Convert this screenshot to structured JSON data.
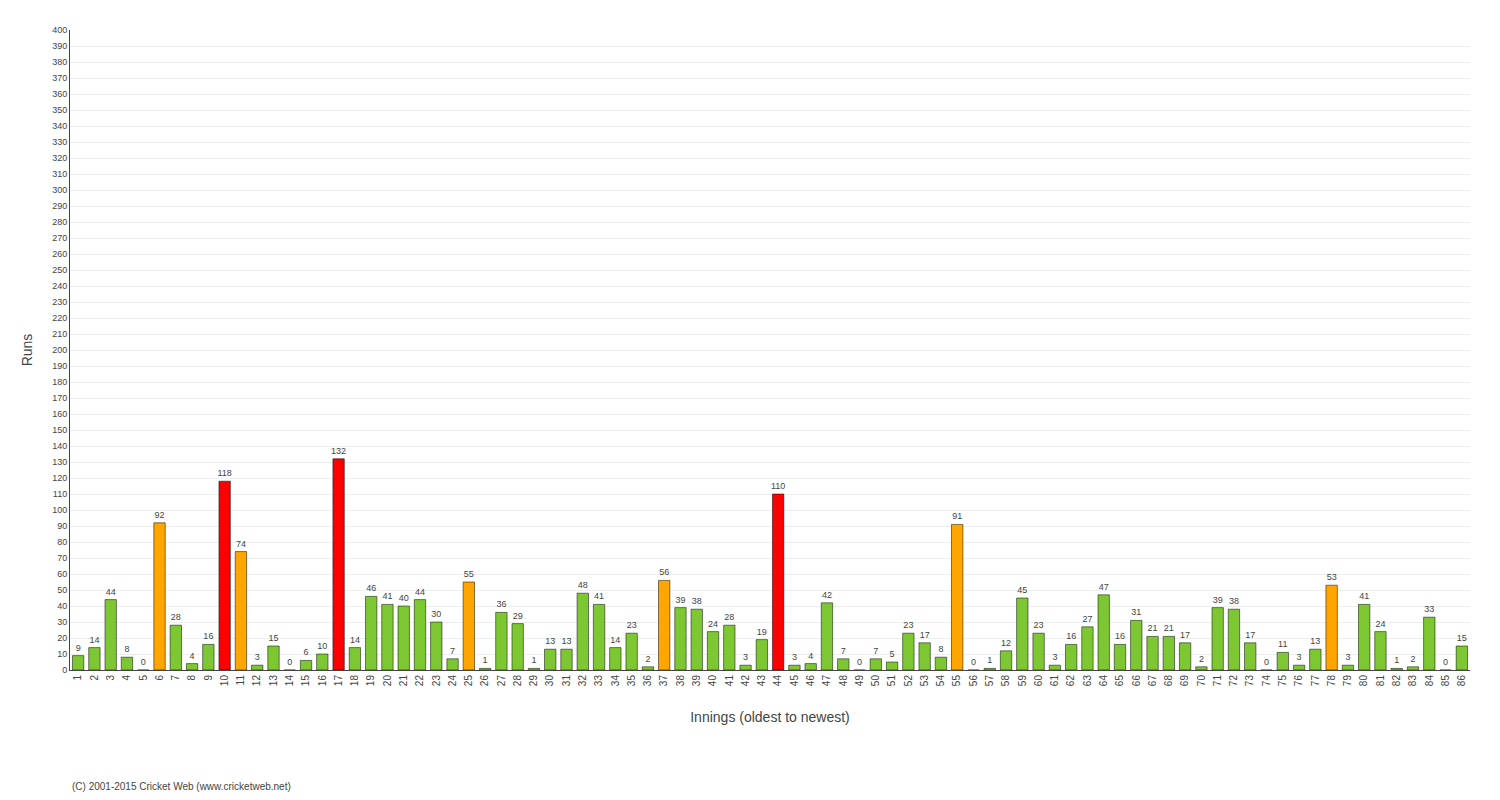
{
  "chart_data": {
    "type": "bar",
    "xlabel": "Innings (oldest to newest)",
    "ylabel": "Runs",
    "categories": [
      "1",
      "2",
      "3",
      "4",
      "5",
      "6",
      "7",
      "8",
      "9",
      "10",
      "11",
      "12",
      "13",
      "14",
      "15",
      "16",
      "17",
      "18",
      "19",
      "20",
      "21",
      "22",
      "23",
      "24",
      "25",
      "26",
      "27",
      "28",
      "29",
      "30",
      "31",
      "32",
      "33",
      "34",
      "35",
      "36",
      "37",
      "38",
      "39",
      "40",
      "41",
      "42",
      "43",
      "44",
      "45",
      "46",
      "47",
      "48",
      "49",
      "50",
      "51",
      "52",
      "53",
      "54",
      "55",
      "56",
      "57",
      "58",
      "59",
      "60",
      "61",
      "62",
      "63",
      "64",
      "65",
      "66",
      "67",
      "68",
      "69",
      "70",
      "71",
      "72",
      "73",
      "74",
      "75",
      "76",
      "77",
      "78",
      "79",
      "80",
      "81",
      "82",
      "83",
      "84",
      "85",
      "86"
    ],
    "values": [
      9,
      14,
      44,
      8,
      0,
      92,
      28,
      4,
      16,
      118,
      74,
      3,
      15,
      0,
      6,
      10,
      132,
      14,
      46,
      41,
      40,
      44,
      30,
      7,
      55,
      1,
      36,
      29,
      1,
      13,
      13,
      48,
      41,
      14,
      23,
      2,
      56,
      39,
      38,
      24,
      28,
      3,
      19,
      110,
      3,
      4,
      42,
      7,
      0,
      7,
      5,
      23,
      17,
      8,
      91,
      0,
      1,
      12,
      45,
      23,
      3,
      16,
      27,
      47,
      16,
      31,
      21,
      21,
      17,
      2,
      39,
      38,
      17,
      0,
      11,
      3,
      13,
      53,
      3,
      41,
      24,
      1,
      2,
      33,
      0,
      15
    ],
    "colors": [
      "#7dc832",
      "#7dc832",
      "#7dc832",
      "#7dc832",
      "#7dc832",
      "#ffa500",
      "#7dc832",
      "#7dc832",
      "#7dc832",
      "#ff0000",
      "#ffa500",
      "#7dc832",
      "#7dc832",
      "#7dc832",
      "#7dc832",
      "#7dc832",
      "#ff0000",
      "#7dc832",
      "#7dc832",
      "#7dc832",
      "#7dc832",
      "#7dc832",
      "#7dc832",
      "#7dc832",
      "#ffa500",
      "#7dc832",
      "#7dc832",
      "#7dc832",
      "#7dc832",
      "#7dc832",
      "#7dc832",
      "#7dc832",
      "#7dc832",
      "#7dc832",
      "#7dc832",
      "#7dc832",
      "#ffa500",
      "#7dc832",
      "#7dc832",
      "#7dc832",
      "#7dc832",
      "#7dc832",
      "#7dc832",
      "#ff0000",
      "#7dc832",
      "#7dc832",
      "#7dc832",
      "#7dc832",
      "#7dc832",
      "#7dc832",
      "#7dc832",
      "#7dc832",
      "#7dc832",
      "#7dc832",
      "#ffa500",
      "#7dc832",
      "#7dc832",
      "#7dc832",
      "#7dc832",
      "#7dc832",
      "#7dc832",
      "#7dc832",
      "#7dc832",
      "#7dc832",
      "#7dc832",
      "#7dc832",
      "#7dc832",
      "#7dc832",
      "#7dc832",
      "#7dc832",
      "#7dc832",
      "#7dc832",
      "#7dc832",
      "#7dc832",
      "#7dc832",
      "#7dc832",
      "#7dc832",
      "#ffa500",
      "#7dc832",
      "#7dc832",
      "#7dc832",
      "#7dc832",
      "#7dc832",
      "#7dc832",
      "#7dc832",
      "#7dc832"
    ],
    "ylim": [
      0,
      400
    ],
    "yticks": [
      0,
      10,
      20,
      30,
      40,
      50,
      60,
      70,
      80,
      90,
      100,
      110,
      120,
      130,
      140,
      150,
      160,
      170,
      180,
      190,
      200,
      210,
      220,
      230,
      240,
      250,
      260,
      270,
      280,
      290,
      300,
      310,
      320,
      330,
      340,
      350,
      360,
      370,
      380,
      390,
      400
    ],
    "grid": true,
    "data_labels": true,
    "annotations": [
      "(C) 2001-2015 Cricket Web (www.cricketweb.net)"
    ]
  }
}
